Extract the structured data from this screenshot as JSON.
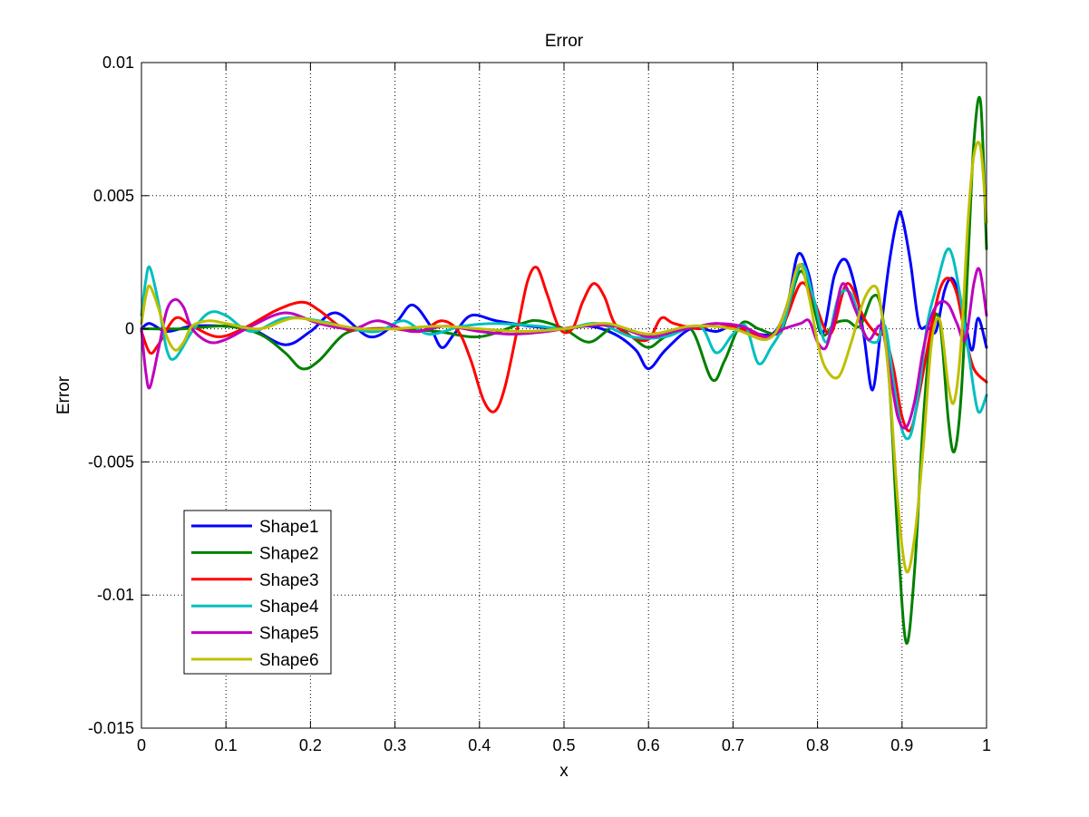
{
  "chart_data": {
    "type": "line",
    "title": "Error",
    "xlabel": "x",
    "ylabel": "Error",
    "xlim": [
      0,
      1
    ],
    "ylim": [
      -0.015,
      0.01
    ],
    "grid": true,
    "legend_position": "bottom-left",
    "xticks": [
      0,
      0.1,
      0.2,
      0.3,
      0.4,
      0.5,
      0.6,
      0.7,
      0.8,
      0.9,
      1
    ],
    "xtick_labels": [
      "0",
      "0.1",
      "0.2",
      "0.3",
      "0.4",
      "0.5",
      "0.6",
      "0.7",
      "0.8",
      "0.9",
      "1"
    ],
    "yticks": [
      0.01,
      0.005,
      0,
      -0.005,
      -0.01,
      -0.015
    ],
    "ytick_labels": [
      "0.01",
      "0.005",
      "0",
      "-0.005",
      "-0.01",
      "-0.015"
    ],
    "series": [
      {
        "name": "Shape1",
        "color": "#0000ff",
        "x": [
          0,
          0.01,
          0.03,
          0.06,
          0.1,
          0.13,
          0.17,
          0.2,
          0.23,
          0.27,
          0.3,
          0.32,
          0.34,
          0.355,
          0.37,
          0.39,
          0.42,
          0.46,
          0.5,
          0.53,
          0.56,
          0.585,
          0.6,
          0.62,
          0.65,
          0.68,
          0.7,
          0.73,
          0.75,
          0.765,
          0.777,
          0.79,
          0.805,
          0.82,
          0.833,
          0.845,
          0.855,
          0.865,
          0.875,
          0.885,
          0.895,
          0.9,
          0.91,
          0.92,
          0.93,
          0.94,
          0.95,
          0.958,
          0.965,
          0.975,
          0.983,
          0.99,
          1
        ],
        "y": [
          0,
          0.0002,
          -0.0001,
          0.0001,
          0.0001,
          0,
          -0.0006,
          -0.0001,
          0.0006,
          -0.0003,
          0.0002,
          0.0009,
          0.0002,
          -0.0007,
          -0.0002,
          0.0005,
          0.0003,
          0.0001,
          0,
          0.0001,
          -0.0002,
          -0.0008,
          -0.0015,
          -0.0008,
          0,
          -0.0001,
          0.0001,
          -0.0002,
          -0.0001,
          0.001,
          0.0028,
          0.002,
          -0.0002,
          0.002,
          0.0026,
          0.0015,
          -0.0003,
          -0.0023,
          0,
          0.0025,
          0.0042,
          0.0042,
          0.0025,
          0.0002,
          0.0001,
          -0.0001,
          0.0014,
          0.0019,
          0.0015,
          0.0002,
          -0.0008,
          0.0004,
          -0.0007
        ]
      },
      {
        "name": "Shape2",
        "color": "#008000",
        "x": [
          0,
          0.05,
          0.1,
          0.14,
          0.17,
          0.19,
          0.21,
          0.24,
          0.27,
          0.3,
          0.35,
          0.4,
          0.45,
          0.47,
          0.5,
          0.53,
          0.56,
          0.58,
          0.6,
          0.62,
          0.65,
          0.675,
          0.69,
          0.71,
          0.73,
          0.75,
          0.76,
          0.778,
          0.79,
          0.805,
          0.82,
          0.835,
          0.85,
          0.865,
          0.875,
          0.885,
          0.895,
          0.905,
          0.915,
          0.925,
          0.935,
          0.945,
          0.955,
          0.962,
          0.97,
          0.978,
          0.985,
          0.993,
          1
        ],
        "y": [
          0,
          0,
          0.0001,
          -0.0002,
          -0.0009,
          -0.0015,
          -0.0012,
          -0.0002,
          0,
          0,
          -0.0001,
          -0.0003,
          0.0002,
          0.0003,
          0,
          -0.0005,
          0.0001,
          -0.0003,
          -0.0007,
          -0.0003,
          0,
          -0.0019,
          -0.0012,
          0.0002,
          0,
          -0.0002,
          0.0001,
          0.0021,
          0.0015,
          -0.0002,
          0.0002,
          0.0003,
          0.0001,
          0.0012,
          0.0008,
          -0.002,
          -0.0078,
          -0.0118,
          -0.009,
          -0.0035,
          0,
          0.0002,
          -0.0035,
          -0.0046,
          -0.0025,
          0.0025,
          0.007,
          0.0085,
          0.003
        ]
      },
      {
        "name": "Shape3",
        "color": "#ff0000",
        "x": [
          0,
          0.01,
          0.02,
          0.04,
          0.06,
          0.09,
          0.12,
          0.16,
          0.19,
          0.21,
          0.24,
          0.27,
          0.3,
          0.33,
          0.355,
          0.375,
          0.39,
          0.405,
          0.418,
          0.43,
          0.445,
          0.457,
          0.468,
          0.48,
          0.495,
          0.51,
          0.522,
          0.535,
          0.548,
          0.56,
          0.58,
          0.6,
          0.615,
          0.63,
          0.66,
          0.68,
          0.71,
          0.74,
          0.76,
          0.78,
          0.795,
          0.815,
          0.835,
          0.855,
          0.87,
          0.88,
          0.89,
          0.9,
          0.91,
          0.92,
          0.935,
          0.945,
          0.955,
          0.965,
          0.975,
          0.985,
          1
        ],
        "y": [
          -0.0001,
          -0.0009,
          -0.0006,
          0.0004,
          0.0001,
          -0.0003,
          0,
          0.0007,
          0.001,
          0.0007,
          0,
          0,
          0,
          -0.0001,
          0.0003,
          -0.0001,
          -0.0012,
          -0.0027,
          -0.0031,
          -0.0022,
          0,
          0.0018,
          0.0023,
          0.0013,
          0,
          0,
          0.001,
          0.0017,
          0.0012,
          0.0002,
          -0.0003,
          -0.0004,
          0.0004,
          0.0002,
          0,
          0.0002,
          0,
          -0.0003,
          0.0002,
          0.0017,
          0.0011,
          -0.0002,
          0.0017,
          0.0004,
          -0.0002,
          -0.0003,
          -0.0015,
          -0.0033,
          -0.0038,
          -0.0025,
          0.0001,
          0.0015,
          0.0019,
          0.0013,
          -0.0003,
          -0.0015,
          -0.002
        ]
      },
      {
        "name": "Shape4",
        "color": "#00bfbf",
        "x": [
          0,
          0.005,
          0.01,
          0.02,
          0.03,
          0.04,
          0.06,
          0.08,
          0.1,
          0.13,
          0.17,
          0.21,
          0.25,
          0.28,
          0.31,
          0.34,
          0.38,
          0.42,
          0.47,
          0.5,
          0.54,
          0.58,
          0.62,
          0.66,
          0.68,
          0.7,
          0.715,
          0.73,
          0.745,
          0.76,
          0.78,
          0.795,
          0.81,
          0.825,
          0.84,
          0.855,
          0.87,
          0.88,
          0.89,
          0.9,
          0.91,
          0.92,
          0.93,
          0.94,
          0.952,
          0.96,
          0.97,
          0.98,
          0.99,
          1
        ],
        "y": [
          0.0005,
          0.0018,
          0.0023,
          0.001,
          -0.0008,
          -0.0011,
          -0.0001,
          0.0006,
          0.0005,
          -0.0001,
          0.0004,
          0.0003,
          0,
          -0.0001,
          0.0003,
          -0.0002,
          0.0001,
          0.0002,
          0.0001,
          0,
          0.0002,
          -0.0003,
          -0.0003,
          0.0001,
          -0.0009,
          -0.0002,
          0.0001,
          -0.0013,
          -0.0007,
          0.0002,
          0.0024,
          0.0012,
          -0.0005,
          0.0012,
          0.0013,
          -0.0002,
          -0.0005,
          0.0001,
          -0.002,
          -0.0038,
          -0.004,
          -0.0023,
          0.0002,
          0.0015,
          0.0029,
          0.0027,
          0.001,
          -0.0012,
          -0.0031,
          -0.0025
        ]
      },
      {
        "name": "Shape5",
        "color": "#bf00bf",
        "x": [
          0,
          0.005,
          0.01,
          0.02,
          0.03,
          0.04,
          0.05,
          0.06,
          0.08,
          0.1,
          0.13,
          0.17,
          0.21,
          0.25,
          0.28,
          0.32,
          0.36,
          0.4,
          0.44,
          0.48,
          0.52,
          0.56,
          0.6,
          0.63,
          0.66,
          0.68,
          0.71,
          0.74,
          0.76,
          0.78,
          0.79,
          0.8,
          0.81,
          0.82,
          0.83,
          0.845,
          0.86,
          0.875,
          0.885,
          0.895,
          0.905,
          0.915,
          0.925,
          0.935,
          0.945,
          0.955,
          0.965,
          0.975,
          0.985,
          0.992,
          1
        ],
        "y": [
          0,
          -0.0016,
          -0.0022,
          -0.0008,
          0.0007,
          0.0011,
          0.0008,
          0,
          -0.0005,
          -0.0004,
          0.0001,
          0.0006,
          0.0002,
          0,
          0.0003,
          -0.0001,
          0.0001,
          -0.0001,
          -0.0002,
          -0.0001,
          0.0001,
          0.0001,
          -0.0003,
          -0.0001,
          0.0001,
          0.0002,
          0.0001,
          -0.0003,
          0,
          0.0002,
          0.0003,
          -0.0005,
          -0.0007,
          0.0004,
          0.0017,
          0.0007,
          -0.0004,
          0.0001,
          -0.0015,
          -0.0033,
          -0.0037,
          -0.0027,
          -0.0008,
          0.0005,
          0.001,
          0.0009,
          0.0002,
          -0.0004,
          0.0017,
          0.0022,
          0.0005
        ]
      },
      {
        "name": "Shape6",
        "color": "#bfbf00",
        "x": [
          0,
          0.005,
          0.01,
          0.02,
          0.03,
          0.04,
          0.05,
          0.06,
          0.08,
          0.1,
          0.14,
          0.18,
          0.22,
          0.26,
          0.3,
          0.35,
          0.4,
          0.45,
          0.5,
          0.55,
          0.6,
          0.65,
          0.7,
          0.74,
          0.76,
          0.778,
          0.79,
          0.8,
          0.81,
          0.825,
          0.84,
          0.855,
          0.868,
          0.875,
          0.885,
          0.895,
          0.905,
          0.915,
          0.925,
          0.935,
          0.945,
          0.955,
          0.962,
          0.97,
          0.978,
          0.985,
          0.993,
          1
        ],
        "y": [
          0.0002,
          0.0012,
          0.0016,
          0.0008,
          -0.0003,
          -0.0008,
          -0.0005,
          0.0001,
          0.0003,
          0.0002,
          0,
          0.0004,
          0.0002,
          0,
          0,
          0.0001,
          0,
          -0.0001,
          0,
          0.0002,
          -0.0002,
          0.0001,
          0,
          -0.0004,
          0.0005,
          0.0024,
          0.0012,
          -0.0005,
          -0.0015,
          -0.0018,
          -0.0005,
          0.0011,
          0.0016,
          0.0008,
          -0.002,
          -0.0065,
          -0.0091,
          -0.0078,
          -0.0045,
          -0.0005,
          0.0003,
          -0.0022,
          -0.0027,
          -0.0005,
          0.004,
          0.0065,
          0.0068,
          0.004
        ]
      }
    ]
  }
}
